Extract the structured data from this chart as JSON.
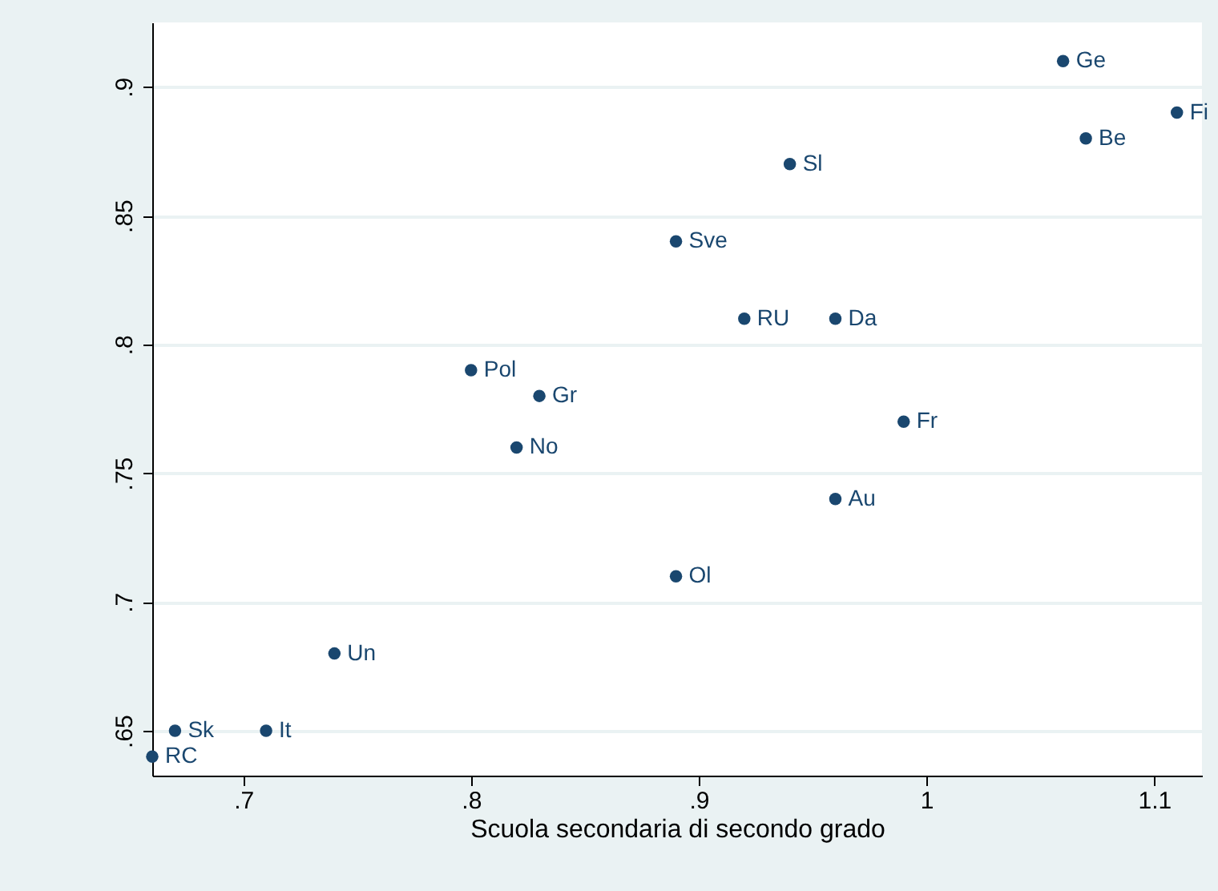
{
  "chart_data": {
    "type": "scatter",
    "xlabel": "Scuola secondaria di secondo grado",
    "x": [
      1.06,
      1.11,
      1.07,
      0.94,
      0.89,
      0.92,
      0.96,
      0.8,
      0.83,
      0.82,
      0.99,
      0.96,
      0.89,
      0.74,
      0.67,
      0.71,
      0.66
    ],
    "series": [
      {
        "color": "#1a476f",
        "values": [
          0.91,
          0.89,
          0.88,
          0.87,
          0.84,
          0.81,
          0.81,
          0.79,
          0.78,
          0.76,
          0.77,
          0.74,
          0.71,
          0.68,
          0.65,
          0.65,
          0.64
        ]
      }
    ],
    "annotations": [
      {
        "text": "Ge",
        "x": 1.06,
        "y": 0.91
      },
      {
        "text": "Fi",
        "x": 1.11,
        "y": 0.89
      },
      {
        "text": "Be",
        "x": 1.07,
        "y": 0.88
      },
      {
        "text": "Sl",
        "x": 0.94,
        "y": 0.87
      },
      {
        "text": "Sve",
        "x": 0.89,
        "y": 0.84
      },
      {
        "text": "RU",
        "x": 0.92,
        "y": 0.81
      },
      {
        "text": "Da",
        "x": 0.96,
        "y": 0.81
      },
      {
        "text": "Pol",
        "x": 0.8,
        "y": 0.79
      },
      {
        "text": "Gr",
        "x": 0.83,
        "y": 0.78
      },
      {
        "text": "No",
        "x": 0.82,
        "y": 0.76
      },
      {
        "text": "Fr",
        "x": 0.99,
        "y": 0.77
      },
      {
        "text": "Au",
        "x": 0.96,
        "y": 0.74
      },
      {
        "text": "Ol",
        "x": 0.89,
        "y": 0.71
      },
      {
        "text": "Un",
        "x": 0.74,
        "y": 0.68
      },
      {
        "text": "Sk",
        "x": 0.67,
        "y": 0.65
      },
      {
        "text": "It",
        "x": 0.71,
        "y": 0.65
      },
      {
        "text": "RC",
        "x": 0.66,
        "y": 0.64
      }
    ],
    "xlim": [
      0.66,
      1.121
    ],
    "ylim": [
      0.6326,
      0.925
    ],
    "xticks": [
      {
        "value": 0.7,
        "label": ".7"
      },
      {
        "value": 0.8,
        "label": ".8"
      },
      {
        "value": 0.9,
        "label": ".9"
      },
      1,
      1.1
    ],
    "yticks": [
      {
        "value": 0.65,
        "label": ".65"
      },
      {
        "value": 0.7,
        "label": ".7"
      },
      {
        "value": 0.75,
        "label": ".75"
      },
      {
        "value": 0.8,
        "label": ".8"
      },
      {
        "value": 0.85,
        "label": ".85"
      },
      {
        "value": 0.9,
        "label": ".9"
      }
    ],
    "grid": "y",
    "marker": "circle"
  }
}
